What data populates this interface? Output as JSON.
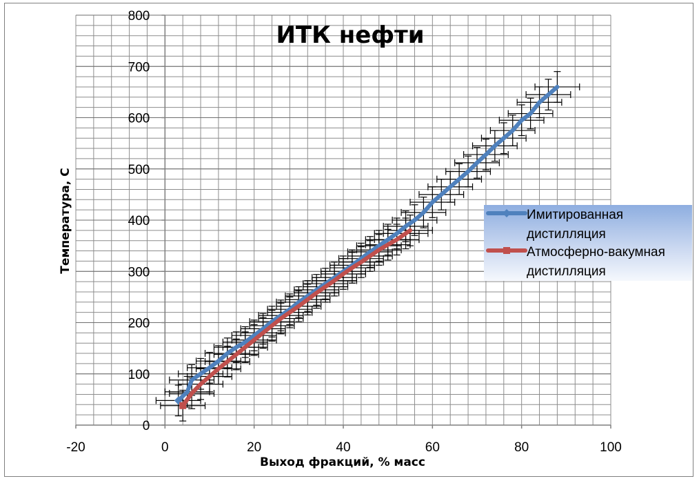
{
  "chart_data": {
    "type": "line",
    "title": "ИТК нефти",
    "xlabel": "Выход фракций, % масс",
    "ylabel": "Температура, С",
    "xlim": [
      -20,
      100
    ],
    "ylim": [
      0,
      800
    ],
    "x_ticks": [
      -20,
      0,
      20,
      40,
      60,
      80,
      100
    ],
    "y_ticks": [
      0,
      100,
      200,
      300,
      400,
      500,
      600,
      700,
      800
    ],
    "grid": true,
    "legend_position": "right",
    "error_bars": {
      "x": 5,
      "y": 30
    },
    "series": [
      {
        "name": "Имитированная дистилляция",
        "color": "#4f81bd",
        "marker": "diamond",
        "x": [
          3,
          5,
          6,
          8,
          10,
          12,
          14,
          16,
          18,
          20,
          22,
          24,
          26,
          28,
          30,
          32,
          34,
          36,
          38,
          40,
          42,
          44,
          46,
          48,
          50,
          52,
          54,
          56,
          58,
          60,
          62,
          64,
          66,
          68,
          70,
          72,
          74,
          76,
          78,
          80,
          82,
          84,
          86,
          88
        ],
        "y": [
          48,
          65,
          88,
          100,
          112,
          125,
          140,
          152,
          162,
          175,
          188,
          202,
          214,
          226,
          240,
          252,
          264,
          276,
          288,
          300,
          312,
          325,
          338,
          350,
          362,
          374,
          388,
          400,
          415,
          435,
          450,
          465,
          480,
          495,
          512,
          528,
          545,
          560,
          575,
          595,
          608,
          630,
          645,
          660
        ]
      },
      {
        "name": "Атмосферно-вакумная дистилляция",
        "color": "#c0504d",
        "marker": "square",
        "x": [
          4,
          6,
          8,
          10,
          12,
          14,
          16,
          18,
          20,
          22,
          24,
          26,
          28,
          30,
          32,
          34,
          36,
          38,
          40,
          42,
          44,
          46,
          48,
          50,
          52,
          54,
          55
        ],
        "y": [
          38,
          62,
          80,
          95,
          110,
          124,
          138,
          152,
          166,
          180,
          194,
          208,
          220,
          232,
          245,
          258,
          270,
          282,
          295,
          307,
          318,
          330,
          342,
          352,
          362,
          374,
          380
        ]
      }
    ]
  }
}
